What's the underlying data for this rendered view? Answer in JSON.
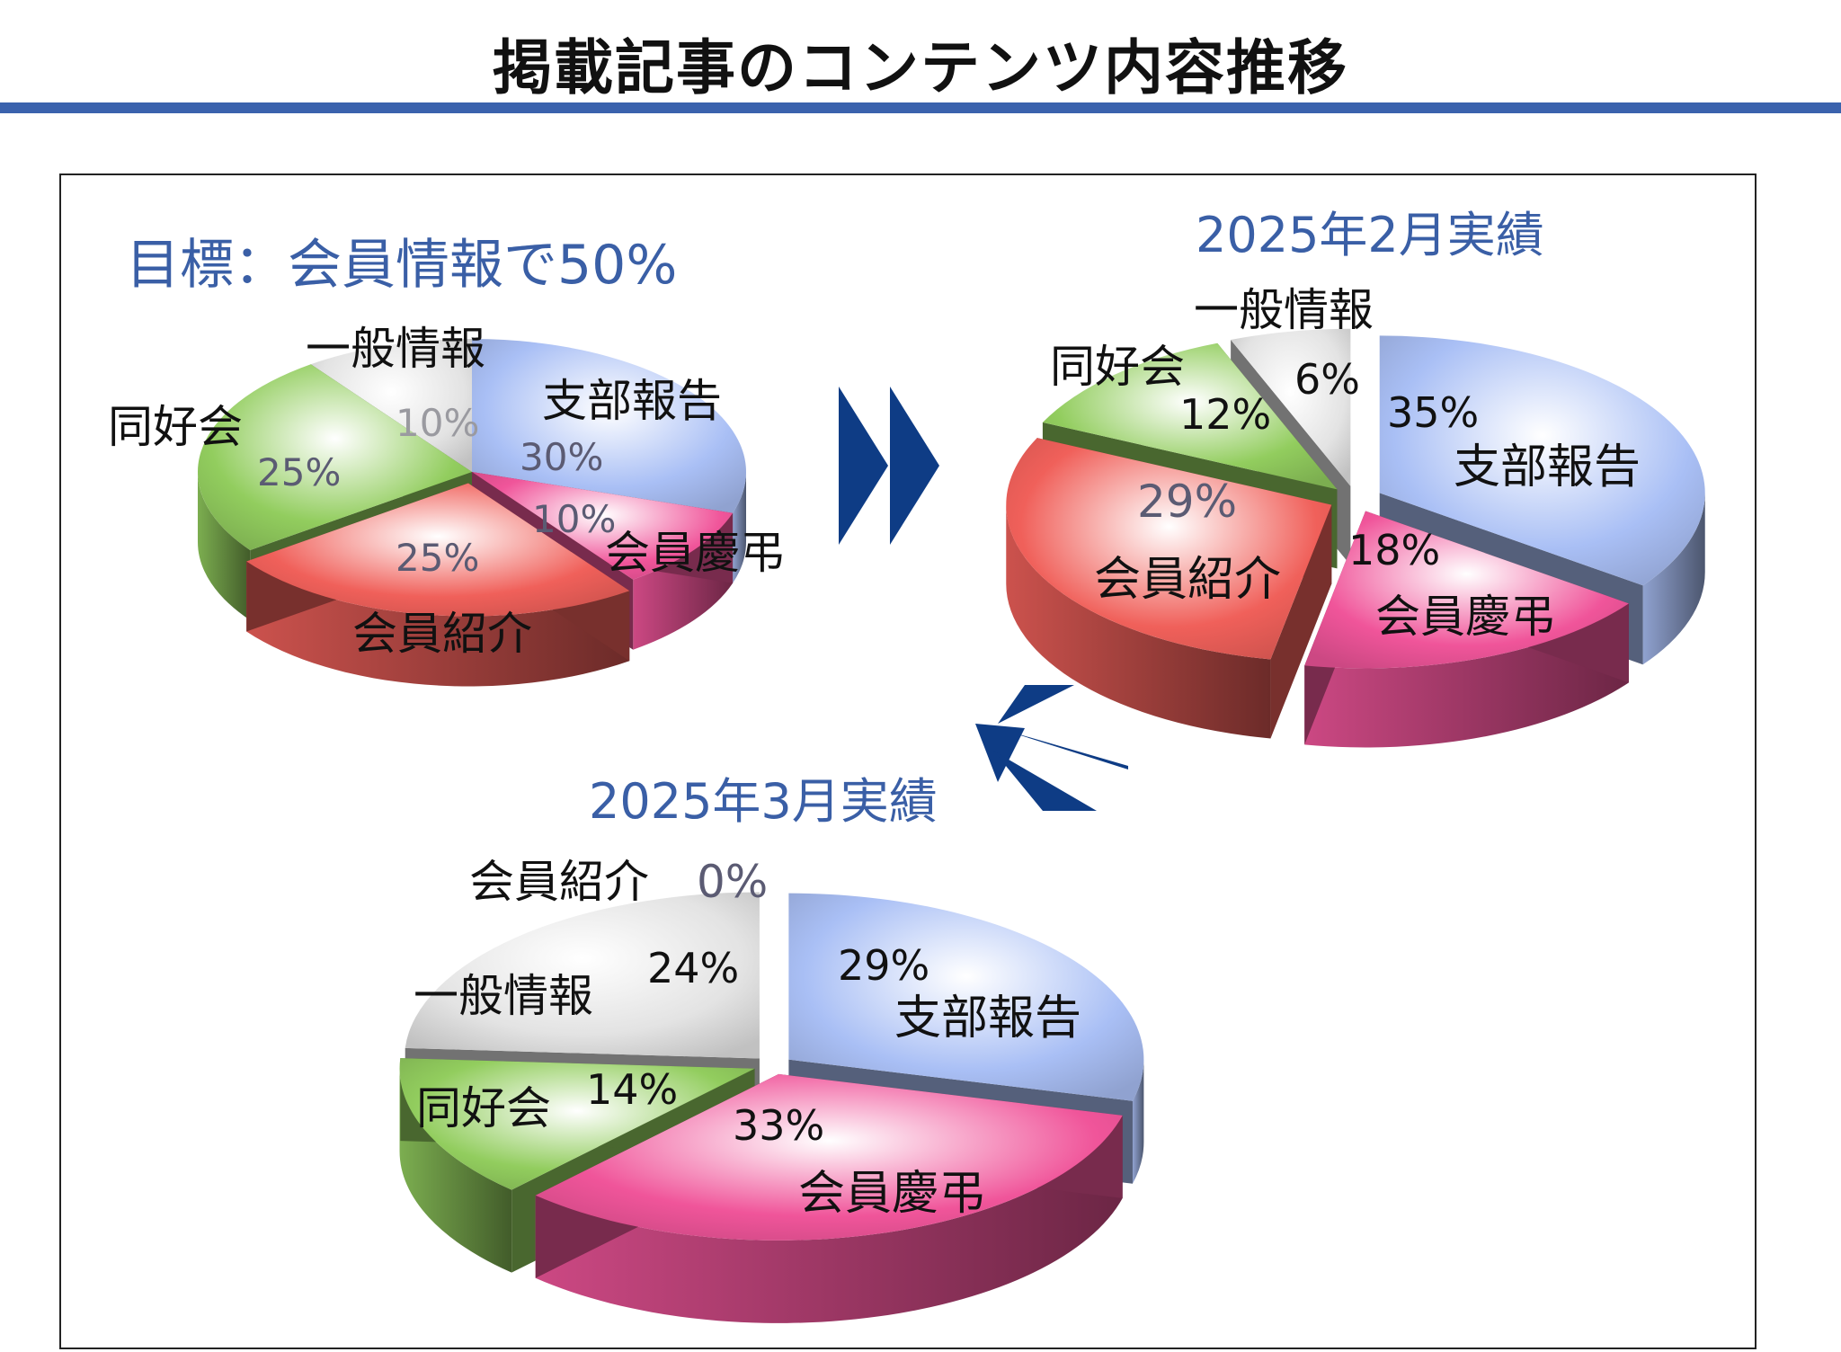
{
  "page": {
    "title": "掲載記事のコンテンツ内容推移"
  },
  "chart_data": [
    {
      "type": "pie",
      "title": "目標：会員情報で50%",
      "slices": [
        {
          "label": "支部報告",
          "value_label": "30%",
          "value": 30,
          "color": "#a9bff5"
        },
        {
          "label": "会員慶弔",
          "value_label": "10%",
          "value": 10,
          "color": "#f0559a"
        },
        {
          "label": "会員紹介",
          "value_label": "25%",
          "value": 25,
          "color": "#f0605a"
        },
        {
          "label": "同好会",
          "value_label": "25%",
          "value": 25,
          "color": "#92cd5e"
        },
        {
          "label": "一般情報",
          "value_label": "10%",
          "value": 10,
          "color": "#e3e3e3"
        }
      ]
    },
    {
      "type": "pie",
      "title": "2025年2月実績",
      "slices": [
        {
          "label": "支部報告",
          "value_label": "35%",
          "value": 35,
          "color": "#a9bff5"
        },
        {
          "label": "会員慶弔",
          "value_label": "18%",
          "value": 18,
          "color": "#f0559a"
        },
        {
          "label": "会員紹介",
          "value_label": "29%",
          "value": 29,
          "color": "#f0605a"
        },
        {
          "label": "同好会",
          "value_label": "12%",
          "value": 12,
          "color": "#92cd5e"
        },
        {
          "label": "一般情報",
          "value_label": "6%",
          "value": 6,
          "color": "#e3e3e3"
        }
      ]
    },
    {
      "type": "pie",
      "title": "2025年3月実績",
      "slices": [
        {
          "label": "支部報告",
          "value_label": "29%",
          "value": 29,
          "color": "#a9bff5"
        },
        {
          "label": "会員慶弔",
          "value_label": "33%",
          "value": 33,
          "color": "#f0559a"
        },
        {
          "label": "同好会",
          "value_label": "14%",
          "value": 14,
          "color": "#92cd5e"
        },
        {
          "label": "一般情報",
          "value_label": "24%",
          "value": 24,
          "color": "#e3e3e3"
        },
        {
          "label": "会員紹介",
          "value_label": "0%",
          "value": 0,
          "color": "#f0605a"
        }
      ]
    }
  ],
  "colors": {
    "title_rule": "#3a62ad",
    "chart_title": "#3a5fa6",
    "arrow": "#0e3c85"
  }
}
